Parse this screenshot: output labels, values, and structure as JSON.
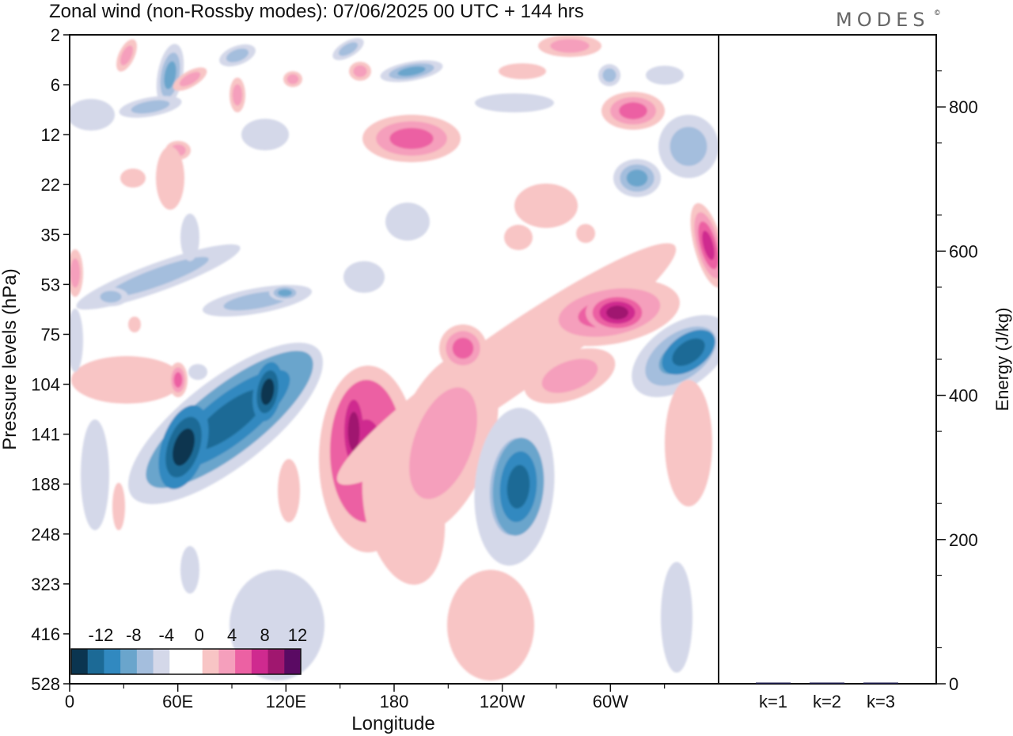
{
  "brand": "MODES",
  "brand_mark": "©",
  "chart_data": [
    {
      "type": "heatmap",
      "title": "Zonal wind (non-Rossby modes):  07/06/2025  00 UTC  + 144 hrs",
      "xlabel": "Longitude",
      "ylabel": "Pressure levels (hPa)",
      "x_ticks": [
        "0",
        "60E",
        "120E",
        "180",
        "120W",
        "60W"
      ],
      "x_tick_degrees": [
        0,
        60,
        120,
        180,
        240,
        300
      ],
      "xlim": [
        0,
        360
      ],
      "y_levels": [
        "2",
        "6",
        "12",
        "22",
        "35",
        "53",
        "75",
        "104",
        "141",
        "188",
        "248",
        "323",
        "416",
        "528"
      ],
      "colorbar": {
        "labels": [
          "-12",
          "-8",
          "-4",
          "0",
          "4",
          "8",
          "12"
        ],
        "colors": [
          "#0b3550",
          "#1c6a96",
          "#3189c0",
          "#6aa5cc",
          "#a4bedd",
          "#d4d8e9",
          "#ffffff",
          "#ffffff",
          "#f8c5c5",
          "#f59fbc",
          "#ec61a3",
          "#cf2a8f",
          "#a0176f",
          "#5a0a63"
        ]
      },
      "features": [
        {
          "sign": "negative",
          "lon": 62,
          "level": "141",
          "peak": -13
        },
        {
          "sign": "negative",
          "lon": 110,
          "level": "124",
          "peak": -11
        },
        {
          "sign": "negative",
          "lon": 250,
          "level": "188",
          "peak": -10
        },
        {
          "sign": "negative",
          "lon": 340,
          "level": "90",
          "peak": -9
        },
        {
          "sign": "positive",
          "lon": 158,
          "level": "150",
          "peak": 12
        },
        {
          "sign": "positive",
          "lon": 300,
          "level": "65",
          "peak": 11
        },
        {
          "sign": "positive",
          "lon": 355,
          "level": "40",
          "peak": 9
        },
        {
          "sign": "positive",
          "lon": 195,
          "level": "12",
          "peak": 6
        }
      ]
    },
    {
      "type": "bar",
      "categories": [
        "k=1",
        "k=2",
        "k=3"
      ],
      "values": [
        1.2,
        1.5,
        1.0
      ],
      "ylabel": "Energy (J/kg)",
      "ylim": [
        0,
        900
      ],
      "y_ticks": [
        "0",
        "200",
        "400",
        "600",
        "800"
      ],
      "y_tick_values": [
        0,
        200,
        400,
        600,
        800
      ],
      "bar_color": "#1a1a4a"
    }
  ]
}
